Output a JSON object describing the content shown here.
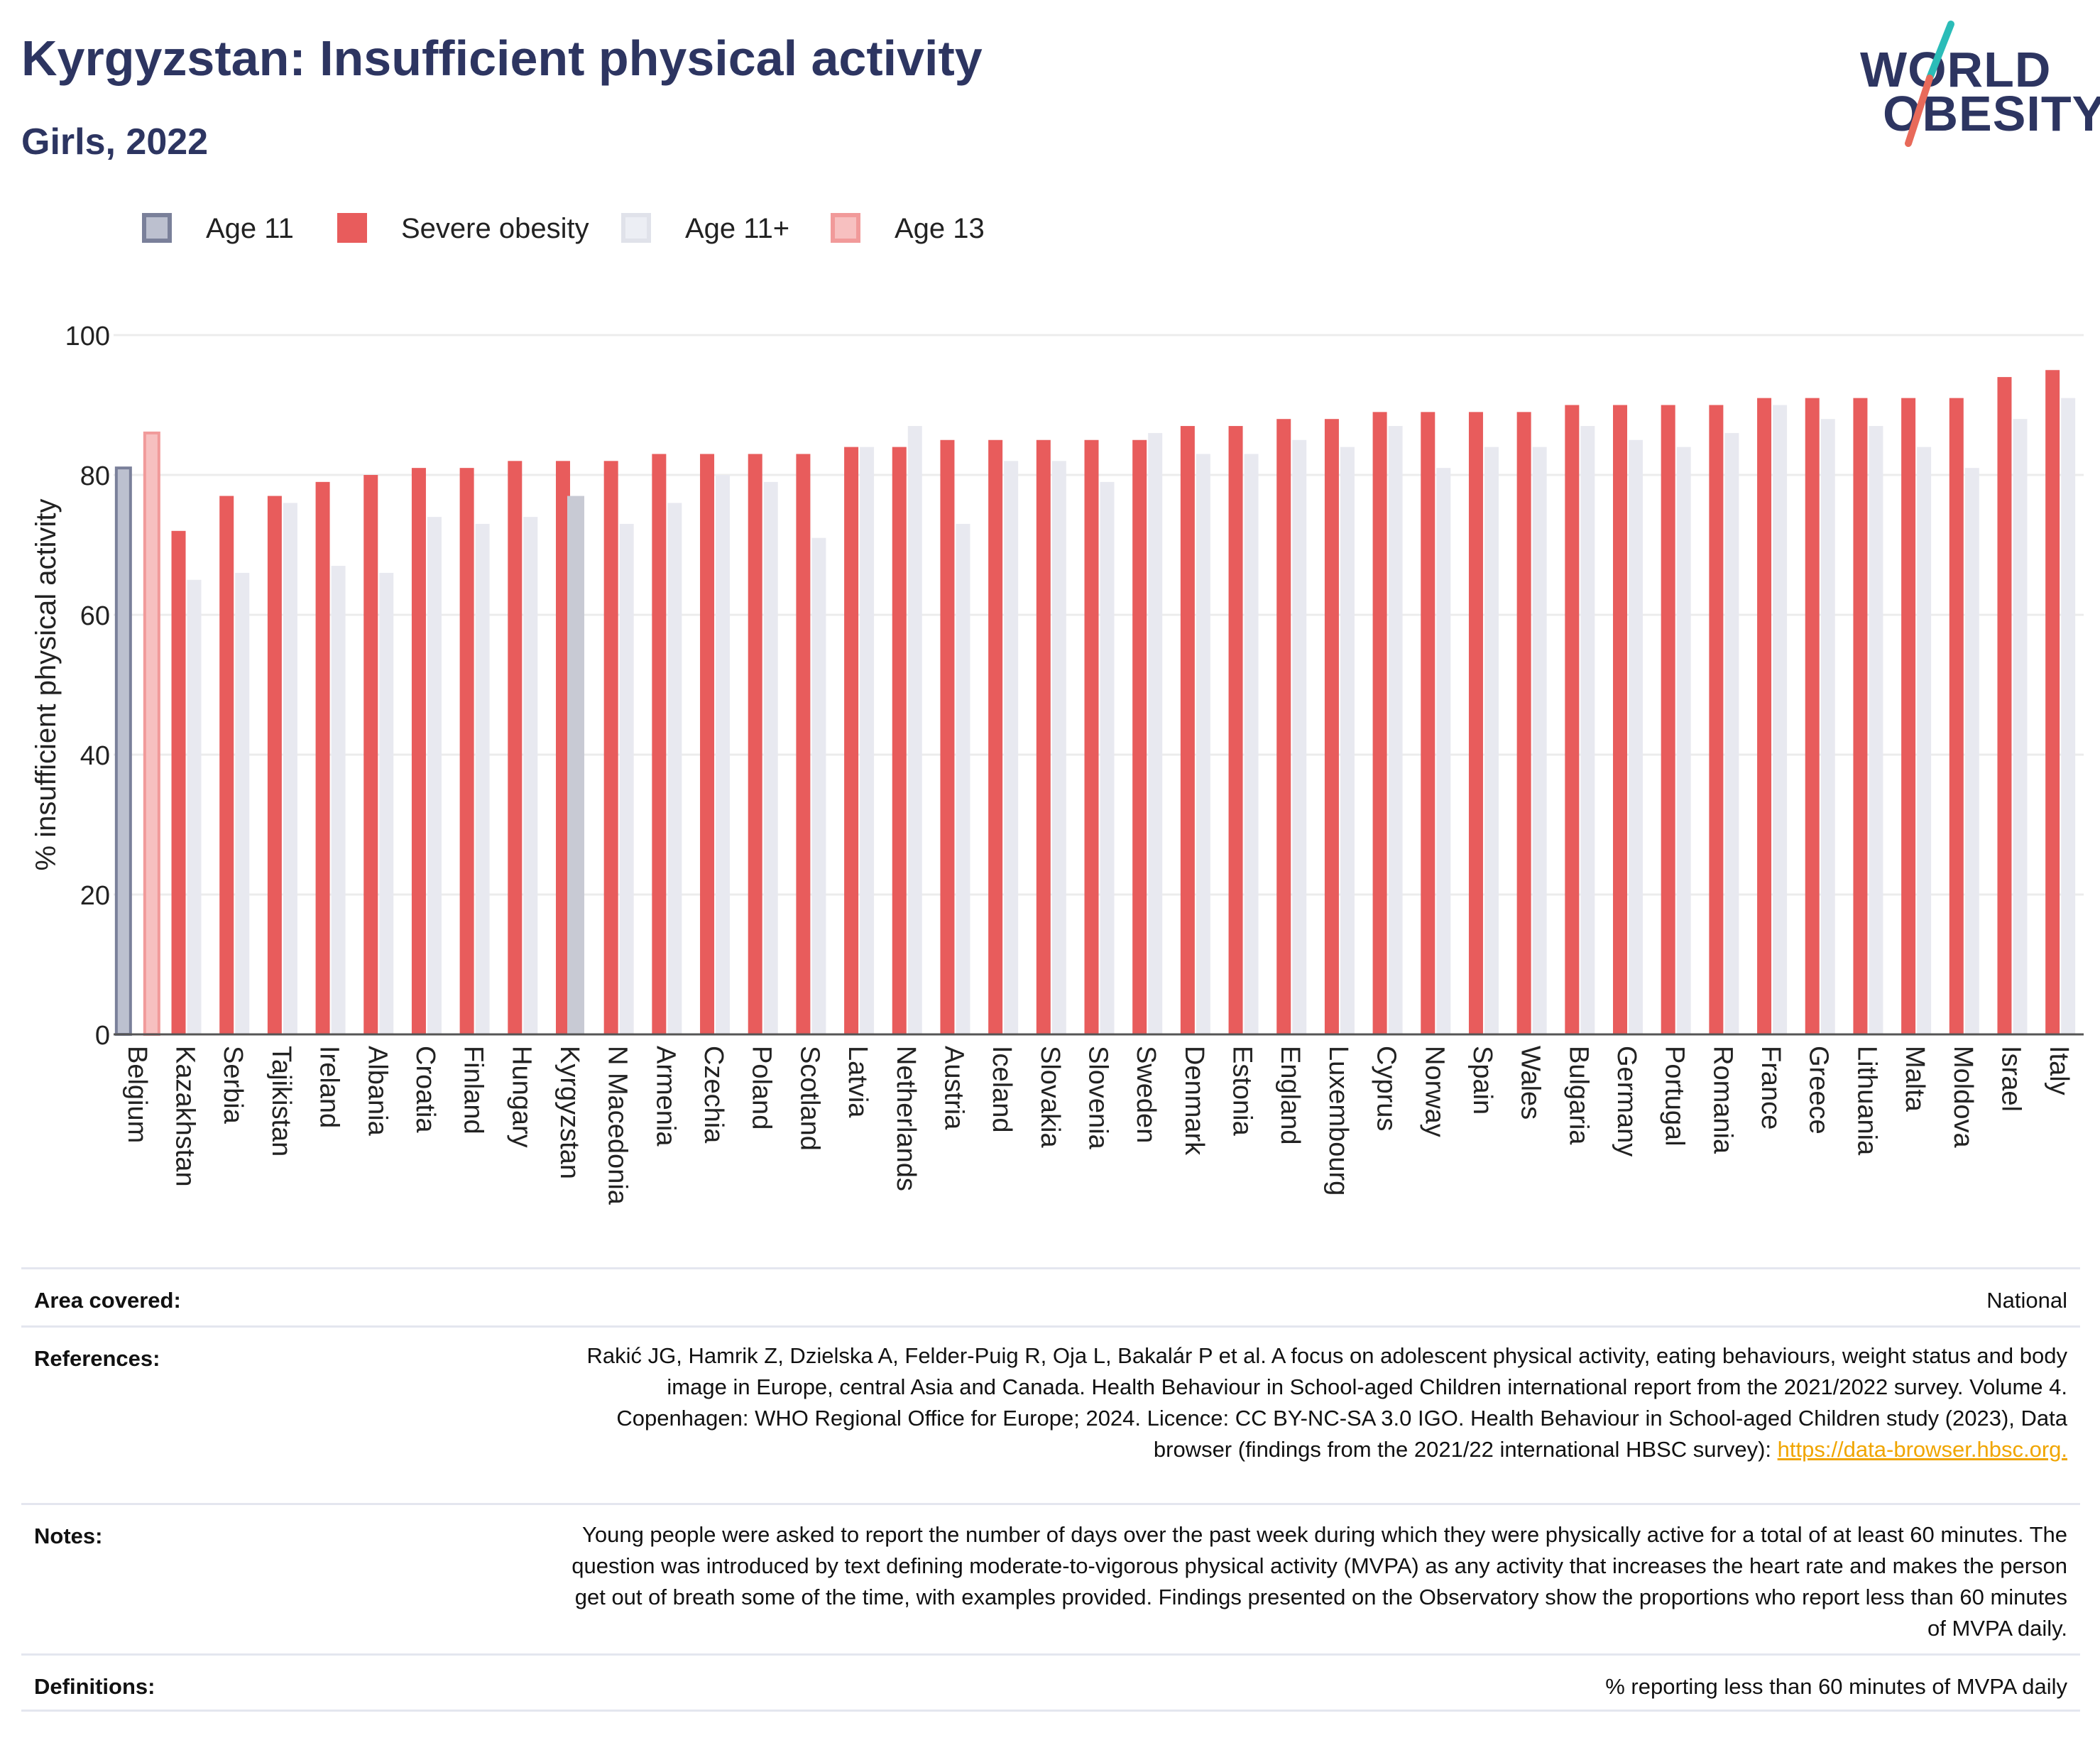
{
  "header": {
    "title": "Kyrgyzstan: Insufficient physical activity",
    "subtitle": "Girls, 2022"
  },
  "logo": {
    "line1": "WORLD",
    "line2": "OBESITY"
  },
  "legend": [
    {
      "label": "Age 11",
      "fill": "#bcc0cf",
      "border": "#7a809a"
    },
    {
      "label": "Severe obesity",
      "fill": "#e85c5c",
      "border": "#e85c5c"
    },
    {
      "label": "Age 11+",
      "fill": "#eceef4",
      "border": "#e0e2ea"
    },
    {
      "label": "Age 13",
      "fill": "#f7c0c0",
      "border": "#f19a9a"
    }
  ],
  "colors": {
    "severe": "#e85c5c",
    "age11plus": "#e8e9f0",
    "highlight": "#c8cad4",
    "age11": "#bcc0cf",
    "age11_border": "#7a809a",
    "age13": "#f7c0c0",
    "age13_border": "#f19a9a",
    "axis": "#555555",
    "grid": "#ececec",
    "link": "#f0a500"
  },
  "chart_data": {
    "type": "bar",
    "ylabel": "% insufficient physical activity",
    "xlabel": "",
    "ylim": [
      0,
      100
    ],
    "yticks": [
      0,
      20,
      40,
      60,
      80,
      100
    ],
    "grid": true,
    "legend_position": "top-left",
    "highlight_category": "Kyrgyzstan",
    "categories": [
      "Belgium",
      "Kazakhstan",
      "Serbia",
      "Tajikistan",
      "Ireland",
      "Albania",
      "Croatia",
      "Finland",
      "Hungary",
      "Kyrgyzstan",
      "N Macedonia",
      "Armenia",
      "Czechia",
      "Poland",
      "Scotland",
      "Latvia",
      "Netherlands",
      "Austria",
      "Iceland",
      "Slovakia",
      "Slovenia",
      "Sweden",
      "Denmark",
      "Estonia",
      "England",
      "Luxembourg",
      "Cyprus",
      "Norway",
      "Spain",
      "Wales",
      "Bulgaria",
      "Germany",
      "Portugal",
      "Romania",
      "France",
      "Greece",
      "Lithuania",
      "Malta",
      "Moldova",
      "Israel",
      "Italy"
    ],
    "series": [
      {
        "name": "Age 11",
        "values": [
          81,
          null,
          null,
          null,
          null,
          null,
          null,
          null,
          null,
          null,
          null,
          null,
          null,
          null,
          null,
          null,
          null,
          null,
          null,
          null,
          null,
          null,
          null,
          null,
          null,
          null,
          null,
          null,
          null,
          null,
          null,
          null,
          null,
          null,
          null,
          null,
          null,
          null,
          null,
          null,
          null
        ]
      },
      {
        "name": "Age 13",
        "values": [
          86,
          null,
          null,
          null,
          null,
          null,
          null,
          null,
          null,
          null,
          null,
          null,
          null,
          null,
          null,
          null,
          null,
          null,
          null,
          null,
          null,
          null,
          null,
          null,
          null,
          null,
          null,
          null,
          null,
          null,
          null,
          null,
          null,
          null,
          null,
          null,
          null,
          null,
          null,
          null,
          null
        ]
      },
      {
        "name": "Severe obesity",
        "values": [
          null,
          72,
          77,
          77,
          79,
          80,
          81,
          81,
          82,
          82,
          82,
          83,
          83,
          83,
          83,
          84,
          84,
          85,
          85,
          85,
          85,
          85,
          87,
          87,
          88,
          88,
          89,
          89,
          89,
          89,
          90,
          90,
          90,
          90,
          91,
          91,
          91,
          91,
          91,
          94,
          95
        ]
      },
      {
        "name": "Age 11+",
        "values": [
          null,
          65,
          66,
          76,
          67,
          66,
          74,
          73,
          74,
          77,
          73,
          76,
          80,
          79,
          71,
          84,
          87,
          73,
          82,
          82,
          79,
          86,
          83,
          83,
          85,
          84,
          87,
          81,
          84,
          84,
          87,
          85,
          84,
          86,
          90,
          88,
          87,
          84,
          81,
          88,
          91
        ]
      }
    ]
  },
  "info": {
    "area": {
      "key": "Area covered:",
      "value": "National"
    },
    "references": {
      "key": "References:",
      "value": "Rakić JG, Hamrik Z, Dzielska A, Felder-Puig R, Oja L, Bakalár P et al. A focus on adolescent physical activity, eating behaviours, weight status and body image in Europe, central Asia and Canada. Health Behaviour in School-aged Children international report from the 2021/2022 survey. Volume 4. Copenhagen: WHO Regional Office for Europe; 2024. Licence: CC BY-NC-SA 3.0 IGO. Health Behaviour in School-aged Children study (2023), Data browser (findings from the 2021/22 international HBSC survey): ",
      "link": "https://data-browser.hbsc.org."
    },
    "notes": {
      "key": "Notes:",
      "value": "Young people were asked to report the number of days over the past week during which they were physically active for a total of at least 60 minutes. The question was introduced by text defining moderate-to-vigorous physical activity (MVPA) as any activity that increases the heart rate and makes the person get out of breath some of the time, with examples provided. Findings presented on the Observatory show the proportions who report less than 60 minutes of MVPA daily."
    },
    "definitions": {
      "key": "Definitions:",
      "value": "% reporting less than 60 minutes of MVPA daily"
    }
  }
}
